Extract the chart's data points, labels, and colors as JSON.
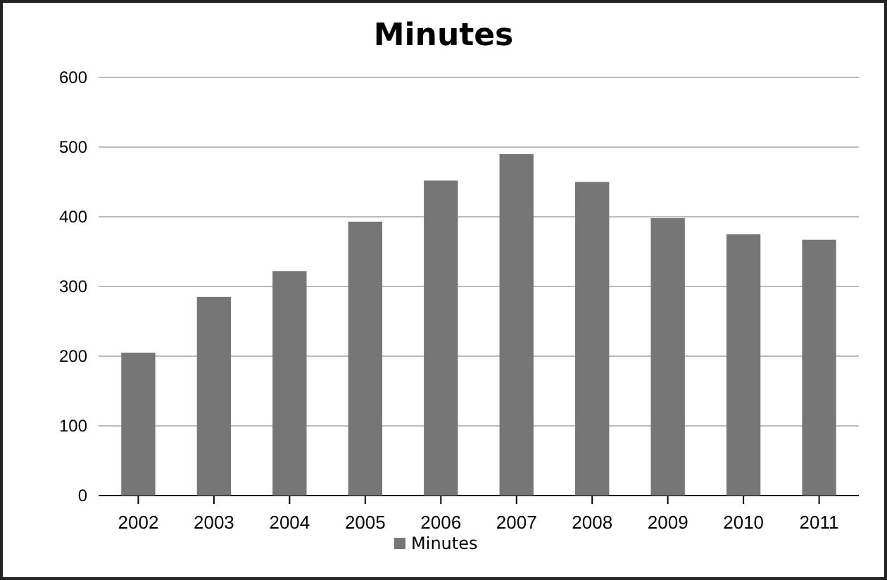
{
  "chart_data": {
    "type": "bar",
    "title": "Minutes",
    "categories": [
      "2002",
      "2003",
      "2004",
      "2005",
      "2006",
      "2007",
      "2008",
      "2009",
      "2010",
      "2011"
    ],
    "series": [
      {
        "name": "Minutes",
        "color": "#767676",
        "values": [
          205,
          285,
          322,
          393,
          452,
          490,
          450,
          398,
          375,
          367
        ]
      }
    ],
    "ylim": [
      0,
      600
    ],
    "yticks": [
      0,
      100,
      200,
      300,
      400,
      500,
      600
    ],
    "grid": "y",
    "legend": "bottom"
  }
}
